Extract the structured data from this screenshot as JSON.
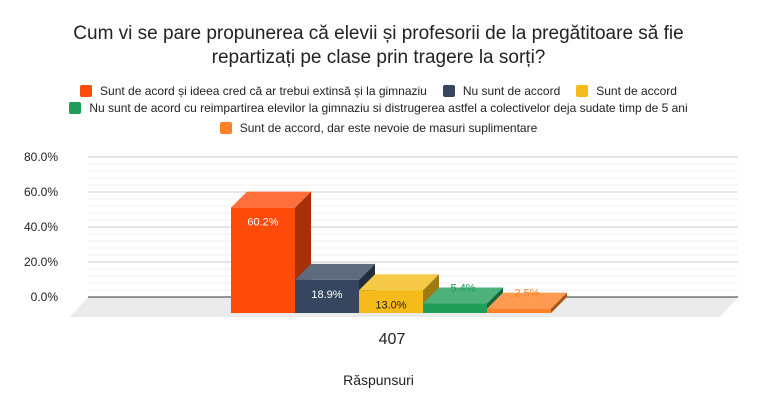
{
  "title_line1": "Cum vi se pare propunerea că elevii și profesorii de la pregătitoare să fie",
  "title_line2": "repartizați pe clase prin tragere la sorți?",
  "chart_data": {
    "type": "bar",
    "categories": [
      "407"
    ],
    "xlabel": "Răspunsuri",
    "ylim": [
      0,
      80
    ],
    "yticks": [
      "0.0%",
      "20.0%",
      "40.0%",
      "60.0%",
      "80.0%"
    ],
    "grid": true,
    "legend_position": "top",
    "series": [
      {
        "name": "Sunt de acord și ideea cred că ar trebui extinsă și la gimnaziu",
        "value": 60.2,
        "label": "60.2%",
        "color": "#ff4b0a"
      },
      {
        "name": "Nu sunt de accord",
        "value": 18.9,
        "label": "18.9%",
        "color": "#36465e"
      },
      {
        "name": "Sunt de accord",
        "value": 13.0,
        "label": "13.0%",
        "color": "#f5bb1a"
      },
      {
        "name": "Nu sunt de acord cu reimpartirea elevilor la gimnaziu si distrugerea astfel a colectivelor deja sudate timp de 5 ani",
        "value": 5.4,
        "label": "5.4%",
        "color": "#1f9e5a"
      },
      {
        "name": "Sunt de accord, dar este nevoie de masuri suplimentare",
        "value": 2.5,
        "label": "2.5%",
        "color": "#ff8127"
      }
    ]
  }
}
